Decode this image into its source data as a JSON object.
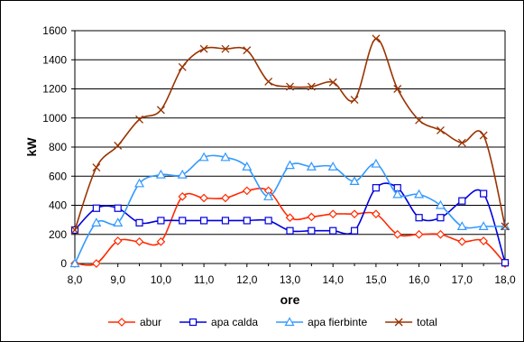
{
  "chart_data": {
    "type": "line",
    "title": "",
    "xlabel": "ore",
    "ylabel": "kW",
    "xlim": [
      8.0,
      18.0
    ],
    "ylim": [
      0,
      1600
    ],
    "x_ticks": [
      "8,0",
      "9,0",
      "10,0",
      "11,0",
      "12,0",
      "13,0",
      "14,0",
      "15,0",
      "16,0",
      "17,0",
      "18,0"
    ],
    "y_ticks": [
      "0",
      "200",
      "400",
      "600",
      "800",
      "1000",
      "1200",
      "1400",
      "1600"
    ],
    "grid": "horizontal",
    "legend_position": "bottom",
    "x": [
      8.0,
      8.5,
      9.0,
      9.5,
      10.0,
      10.5,
      11.0,
      11.5,
      12.0,
      12.5,
      13.0,
      13.5,
      14.0,
      14.5,
      15.0,
      15.5,
      16.0,
      16.5,
      17.0,
      17.5,
      18.0
    ],
    "series": [
      {
        "name": "abur",
        "color": "#ff2a00",
        "marker": "diamond",
        "values": [
          0,
          0,
          155,
          150,
          150,
          460,
          450,
          450,
          500,
          500,
          315,
          320,
          340,
          340,
          340,
          200,
          200,
          200,
          150,
          155,
          0
        ]
      },
      {
        "name": "apa calda",
        "color": "#0000dd",
        "marker": "square",
        "values": [
          230,
          380,
          380,
          280,
          295,
          295,
          295,
          295,
          295,
          295,
          225,
          225,
          225,
          225,
          520,
          520,
          315,
          315,
          430,
          480,
          5
        ]
      },
      {
        "name": "apa fierbinte",
        "color": "#3399ff",
        "marker": "triangle",
        "values": [
          0,
          280,
          280,
          550,
          610,
          610,
          730,
          730,
          665,
          460,
          675,
          665,
          665,
          565,
          685,
          475,
          475,
          400,
          255,
          255,
          255
        ]
      },
      {
        "name": "total",
        "color": "#993300",
        "marker": "x",
        "values": [
          230,
          660,
          810,
          990,
          1055,
          1350,
          1475,
          1475,
          1465,
          1250,
          1215,
          1215,
          1245,
          1125,
          1545,
          1200,
          985,
          915,
          830,
          880,
          255
        ]
      }
    ]
  }
}
